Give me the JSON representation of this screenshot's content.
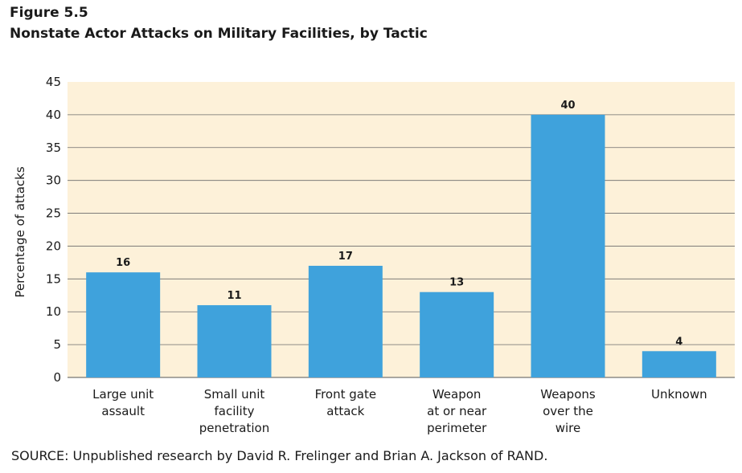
{
  "figure_label": "Figure 5.5",
  "source_note": "SOURCE: Unpublished research by David R. Frelinger and Brian A. Jackson of RAND.",
  "chart_data": {
    "type": "bar",
    "title": "Nonstate Actor Attacks on Military Facilities, by Tactic",
    "ylabel": "Percentage of attacks",
    "xlabel": "",
    "ylim": [
      0,
      45
    ],
    "yticks": [
      0,
      5,
      10,
      15,
      20,
      25,
      30,
      35,
      40,
      45
    ],
    "grid": true,
    "categories": [
      [
        "Large unit",
        "assault"
      ],
      [
        "Small unit",
        "facility",
        "penetration"
      ],
      [
        "Front gate",
        "attack"
      ],
      [
        "Weapon",
        "at or near",
        "perimeter"
      ],
      [
        "Weapons",
        "over the",
        "wire"
      ],
      [
        "Unknown"
      ]
    ],
    "values": [
      16,
      11,
      17,
      13,
      40,
      4
    ],
    "value_labels": [
      "16",
      "11",
      "17",
      "13",
      "40",
      "4"
    ],
    "colors": {
      "plot_bg": "#fdf1d9",
      "bar": "#3fa2dc",
      "grid": "#6b6b6b"
    }
  }
}
